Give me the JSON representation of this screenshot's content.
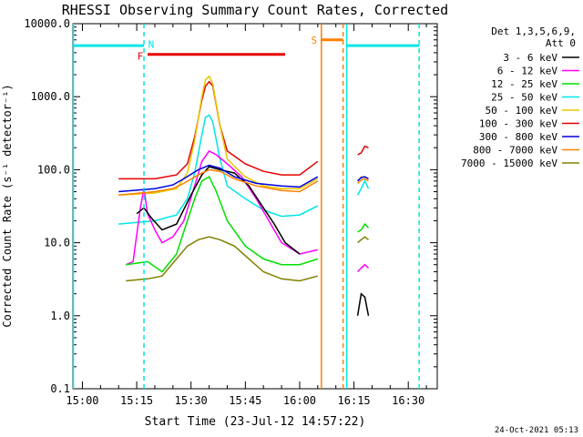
{
  "chart_data": {
    "type": "line",
    "title": "RHESSI Observing Summary Count Rates, Corrected",
    "ylabel": "Corrected Count Rate (s⁻¹ detector⁻¹)",
    "xlabel": "Start Time (23-Jul-12 14:57:22)",
    "y_scale": "log",
    "ylim": [
      0.1,
      10000
    ],
    "xlim": [
      "14:57:22",
      "16:38:00"
    ],
    "y_ticks": [
      "0.1",
      "1.0",
      "10.0",
      "100.0",
      "1000.0",
      "10000.0"
    ],
    "x_ticks": [
      "15:00",
      "15:15",
      "15:30",
      "15:45",
      "16:00",
      "16:15",
      "16:30"
    ],
    "footer": "24-Oct-2021 05:13",
    "legend": {
      "position": "right",
      "header_line1": "Det 1,3,5,6,9,",
      "header_line2": "Att 0",
      "entries": [
        {
          "label": "3 - 6 keV",
          "color": "#000000"
        },
        {
          "label": "6 - 12 keV",
          "color": "#ff00ff"
        },
        {
          "label": "12 - 25 keV",
          "color": "#00e000"
        },
        {
          "label": "25 - 50 keV",
          "color": "#00e5e5"
        },
        {
          "label": "50 - 100 keV",
          "color": "#e6c800"
        },
        {
          "label": "100 - 300 keV",
          "color": "#e60000"
        },
        {
          "label": "300 - 800 keV",
          "color": "#0000e0"
        },
        {
          "label": "800 - 7000 keV",
          "color": "#ff8000"
        },
        {
          "label": "7000 - 15000 keV",
          "color": "#808000"
        }
      ]
    },
    "flags": [
      {
        "label": "N",
        "color": "#00e5e5",
        "level": 5000
      },
      {
        "label": "F",
        "color": "#e60000",
        "level": 3800
      },
      {
        "label": "S",
        "color": "#ff8000",
        "level": 6000
      }
    ],
    "series": [
      {
        "label": "100 - 300 keV",
        "color": "#e60000",
        "x": [
          "15:10",
          "15:20",
          "15:26",
          "15:29",
          "15:31",
          "15:33",
          "15:34",
          "15:35",
          "15:36",
          "15:38",
          "15:40",
          "15:45",
          "15:50",
          "15:55",
          "16:00",
          "16:05"
        ],
        "y": [
          75,
          75,
          85,
          120,
          280,
          900,
          1400,
          1600,
          1400,
          400,
          180,
          120,
          95,
          85,
          85,
          130
        ]
      },
      {
        "label": "50 - 100 keV",
        "color": "#e6c800",
        "x": [
          "15:10",
          "15:20",
          "15:26",
          "15:29",
          "15:31",
          "15:33",
          "15:34",
          "15:35",
          "15:36",
          "15:38",
          "15:40",
          "15:45",
          "15:50",
          "15:55",
          "16:00",
          "16:05"
        ],
        "y": [
          45,
          48,
          55,
          90,
          250,
          1000,
          1700,
          1900,
          1500,
          400,
          140,
          80,
          60,
          55,
          55,
          75
        ]
      },
      {
        "label": "25 - 50 keV",
        "color": "#00e5e5",
        "x": [
          "15:10",
          "15:20",
          "15:26",
          "15:29",
          "15:31",
          "15:33",
          "15:34",
          "15:35",
          "15:36",
          "15:38",
          "15:40",
          "15:45",
          "15:50",
          "15:55",
          "16:00",
          "16:05"
        ],
        "y": [
          18,
          20,
          24,
          40,
          90,
          300,
          520,
          560,
          450,
          140,
          60,
          40,
          28,
          23,
          24,
          32
        ]
      },
      {
        "label": "6 - 12 keV",
        "color": "#ff00ff",
        "x": [
          "15:12",
          "15:14",
          "15:16",
          "15:17",
          "15:18",
          "15:20",
          "15:22",
          "15:25",
          "15:28",
          "15:31",
          "15:33",
          "15:35",
          "15:37",
          "15:40",
          "15:44",
          "15:48",
          "15:52",
          "15:55",
          "16:00",
          "16:05"
        ],
        "y": [
          5,
          5.5,
          30,
          55,
          25,
          15,
          10,
          12,
          20,
          60,
          130,
          180,
          160,
          120,
          80,
          40,
          18,
          10,
          7,
          8
        ]
      },
      {
        "label": "3 - 6 keV",
        "color": "#000000",
        "x": [
          "15:15",
          "15:17",
          "15:19",
          "15:22",
          "15:26",
          "15:30",
          "15:33",
          "15:35",
          "15:38",
          "15:42",
          "15:46",
          "15:50",
          "15:53",
          "15:56",
          "16:00"
        ],
        "y": [
          25,
          30,
          22,
          15,
          18,
          45,
          85,
          110,
          100,
          90,
          60,
          30,
          18,
          10,
          7
        ]
      },
      {
        "label": "300 - 800 keV",
        "color": "#0000e0",
        "x": [
          "15:10",
          "15:20",
          "15:25",
          "15:28",
          "15:32",
          "15:35",
          "15:38",
          "15:42",
          "15:48",
          "15:55",
          "16:00",
          "16:05"
        ],
        "y": [
          50,
          55,
          62,
          75,
          100,
          115,
          105,
          80,
          65,
          60,
          58,
          80
        ]
      },
      {
        "label": "800 - 7000 keV",
        "color": "#ff8000",
        "x": [
          "15:10",
          "15:20",
          "15:25",
          "15:28",
          "15:32",
          "15:35",
          "15:38",
          "15:42",
          "15:48",
          "15:55",
          "16:00",
          "16:05"
        ],
        "y": [
          45,
          50,
          55,
          65,
          85,
          100,
          95,
          75,
          60,
          52,
          50,
          70
        ]
      },
      {
        "label": "12 - 25 keV",
        "color": "#00e000",
        "x": [
          "15:12",
          "15:18",
          "15:22",
          "15:26",
          "15:29",
          "15:31",
          "15:33",
          "15:35",
          "15:37",
          "15:40",
          "15:45",
          "15:50",
          "15:55",
          "16:00",
          "16:05"
        ],
        "y": [
          5,
          5.5,
          4,
          7,
          20,
          40,
          70,
          80,
          50,
          20,
          9,
          6,
          5,
          5,
          6
        ]
      },
      {
        "label": "7000 - 15000 keV",
        "color": "#808000",
        "x": [
          "15:12",
          "15:18",
          "15:22",
          "15:26",
          "15:29",
          "15:32",
          "15:35",
          "15:38",
          "15:42",
          "15:46",
          "15:50",
          "15:55",
          "16:00",
          "16:05"
        ],
        "y": [
          3,
          3.2,
          3.5,
          6,
          9,
          11,
          12,
          11,
          9,
          6,
          4,
          3.2,
          3,
          3.5
        ]
      },
      {
        "label": "100 - 300 keV",
        "color": "#e60000",
        "x": [
          "16:16",
          "16:17",
          "16:18",
          "16:19"
        ],
        "y": [
          160,
          170,
          210,
          200
        ]
      },
      {
        "label": "50 - 100 keV",
        "color": "#e6c800",
        "x": [
          "16:16",
          "16:17",
          "16:18",
          "16:19"
        ],
        "y": [
          70,
          80,
          80,
          75
        ]
      },
      {
        "label": "300 - 800 keV",
        "color": "#0000e0",
        "x": [
          "16:16",
          "16:17",
          "16:18",
          "16:19"
        ],
        "y": [
          70,
          78,
          80,
          75
        ]
      },
      {
        "label": "800 - 7000 keV",
        "color": "#ff8000",
        "x": [
          "16:16",
          "16:17",
          "16:18",
          "16:19"
        ],
        "y": [
          65,
          72,
          75,
          70
        ]
      },
      {
        "label": "25 - 50 keV",
        "color": "#00e5e5",
        "x": [
          "16:16",
          "16:17",
          "16:18",
          "16:19"
        ],
        "y": [
          45,
          55,
          70,
          55
        ]
      },
      {
        "label": "12 - 25 keV",
        "color": "#00e000",
        "x": [
          "16:16",
          "16:17",
          "16:18",
          "16:19"
        ],
        "y": [
          14,
          15,
          18,
          16
        ]
      },
      {
        "label": "7000 - 15000 keV",
        "color": "#808000",
        "x": [
          "16:16",
          "16:17",
          "16:18",
          "16:19"
        ],
        "y": [
          10,
          11,
          12,
          11
        ]
      },
      {
        "label": "6 - 12 keV",
        "color": "#ff00ff",
        "x": [
          "16:16",
          "16:17",
          "16:18",
          "16:19"
        ],
        "y": [
          4,
          4.5,
          5,
          4.5
        ]
      },
      {
        "label": "3 - 6 keV",
        "color": "#000000",
        "x": [
          "16:16",
          "16:17",
          "16:18",
          "16:19"
        ],
        "y": [
          1,
          2,
          1.8,
          1
        ]
      }
    ]
  }
}
